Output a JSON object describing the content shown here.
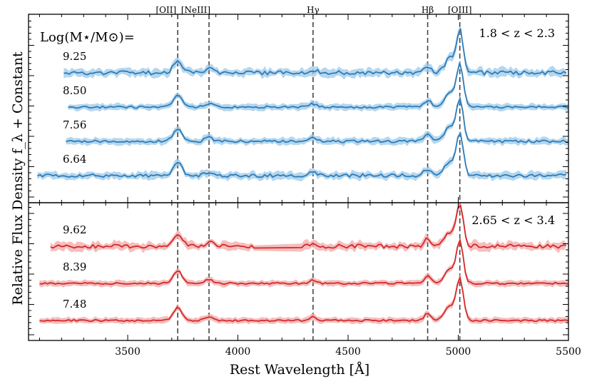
{
  "chart_data": {
    "type": "line",
    "ylabel": "Relative Flux Density f_λ + Constant",
    "xlabel": "Rest Wavelength [Å]",
    "xlim": [
      3050,
      5500
    ],
    "xticks": [
      3500,
      4000,
      4500,
      5000,
      5500
    ],
    "emission_lines": [
      {
        "label": "[OII]",
        "wavelength": 3727
      },
      {
        "label": "[NeIII]",
        "wavelength": 3869
      },
      {
        "label": "Hγ",
        "wavelength": 4341
      },
      {
        "label": "Hβ",
        "wavelength": 4861
      },
      {
        "label": "[OIII]",
        "wavelength": 5007
      }
    ],
    "mass_title": "Log(M⋆/M⊙)=",
    "panels": [
      {
        "redshift_label": "1.8 < z < 2.3",
        "color": "#2b7bba",
        "band_color": "#9ccae8",
        "series": [
          {
            "name": "9.25",
            "xmin": 3210,
            "offset": 3.0,
            "noise": 0.55
          },
          {
            "name": "8.50",
            "xmin": 3230,
            "offset": 2.0,
            "noise": 0.3
          },
          {
            "name": "7.56",
            "xmin": 3220,
            "offset": 1.0,
            "noise": 0.35
          },
          {
            "name": "6.64",
            "xmin": 3090,
            "offset": 0.0,
            "noise": 0.45
          }
        ]
      },
      {
        "redshift_label": "2.65 < z < 3.4",
        "color": "#d62728",
        "band_color": "#f2a8a8",
        "series": [
          {
            "name": "9.62",
            "xmin": 3150,
            "offset": 2.0,
            "noise": 0.55
          },
          {
            "name": "8.39",
            "xmin": 3100,
            "offset": 1.0,
            "noise": 0.25
          },
          {
            "name": "7.48",
            "xmin": 3100,
            "offset": 0.0,
            "noise": 0.25
          }
        ]
      }
    ]
  }
}
